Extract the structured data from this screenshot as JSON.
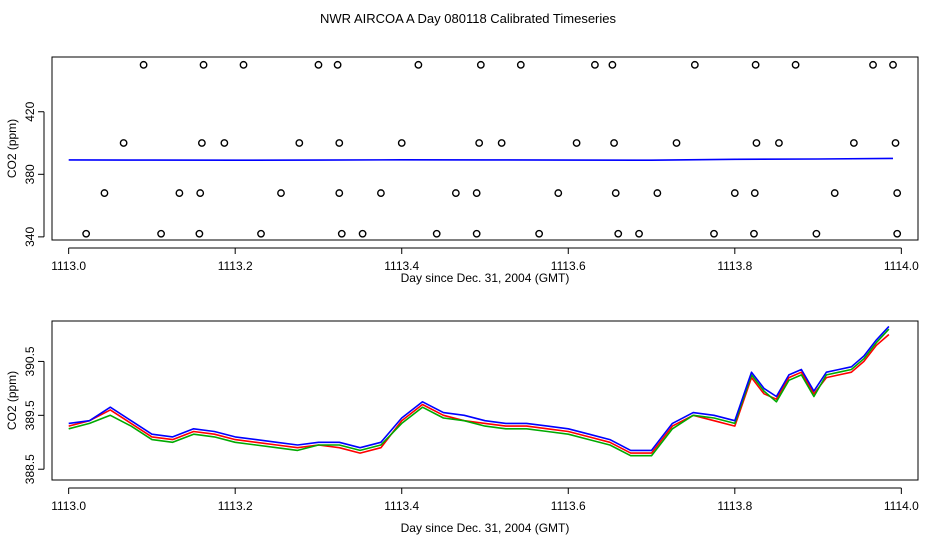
{
  "page": {
    "title": "NWR AIRCOA A  Day 080118  Calibrated Timeseries"
  },
  "chart_data": [
    {
      "type": "scatter",
      "xlabel": "Day since Dec. 31, 2004 (GMT)",
      "ylabel": "CO2 (ppm)",
      "xlim": [
        1112.98,
        1114.02
      ],
      "ylim": [
        338,
        455
      ],
      "xticks": [
        1113.0,
        1113.2,
        1113.4,
        1113.6,
        1113.8,
        1114.0
      ],
      "xtick_labels": [
        "1113.0",
        "1113.2",
        "1113.4",
        "1113.6",
        "1113.8",
        "1114.0"
      ],
      "yticks": [
        340,
        380,
        420
      ],
      "ytick_labels": [
        "340",
        "380",
        "420"
      ],
      "series": [
        {
          "color": "#0000ff",
          "mode": "line",
          "x": [
            1113.0,
            1113.1,
            1113.2,
            1113.3,
            1113.4,
            1113.5,
            1113.6,
            1113.7,
            1113.8,
            1113.9,
            1113.99
          ],
          "y": [
            389.2,
            389.1,
            389.0,
            389.1,
            389.3,
            389.2,
            389.1,
            389.0,
            389.6,
            389.8,
            390.2
          ]
        },
        {
          "color": "#000000",
          "mode": "points",
          "x": [
            1113.09,
            1113.162,
            1113.21,
            1113.3,
            1113.323,
            1113.42,
            1113.495,
            1113.543,
            1113.632,
            1113.653,
            1113.752,
            1113.825,
            1113.873,
            1113.966,
            1113.99,
            1113.066,
            1113.16,
            1113.187,
            1113.277,
            1113.325,
            1113.4,
            1113.493,
            1113.52,
            1113.61,
            1113.655,
            1113.73,
            1113.826,
            1113.853,
            1113.943,
            1113.993,
            1113.043,
            1113.133,
            1113.158,
            1113.255,
            1113.325,
            1113.375,
            1113.465,
            1113.49,
            1113.588,
            1113.657,
            1113.707,
            1113.8,
            1113.824,
            1113.92,
            1113.995,
            1113.021,
            1113.111,
            1113.157,
            1113.231,
            1113.328,
            1113.353,
            1113.442,
            1113.49,
            1113.565,
            1113.66,
            1113.685,
            1113.775,
            1113.823,
            1113.898,
            1113.995
          ],
          "y": [
            450,
            450,
            450,
            450,
            450,
            450,
            450,
            450,
            450,
            450,
            450,
            450,
            450,
            450,
            450,
            400,
            400,
            400,
            400,
            400,
            400,
            400,
            400,
            400,
            400,
            400,
            400,
            400,
            400,
            400,
            368,
            368,
            368,
            368,
            368,
            368,
            368,
            368,
            368,
            368,
            368,
            368,
            368,
            368,
            368,
            342,
            342,
            342,
            342,
            342,
            342,
            342,
            342,
            342,
            342,
            342,
            342,
            342,
            342,
            342
          ]
        }
      ]
    },
    {
      "type": "line",
      "xlabel": "Day since Dec. 31, 2004 (GMT)",
      "ylabel": "CO2 (ppm)",
      "xlim": [
        1112.98,
        1114.02
      ],
      "ylim": [
        388.3,
        391.25
      ],
      "xticks": [
        1113.0,
        1113.2,
        1113.4,
        1113.6,
        1113.8,
        1114.0
      ],
      "xtick_labels": [
        "1113.0",
        "1113.2",
        "1113.4",
        "1113.6",
        "1113.8",
        "1114.0"
      ],
      "yticks": [
        388.5,
        389.5,
        390.5
      ],
      "ytick_labels": [
        "388.5",
        "389.5",
        "390.5"
      ],
      "series": [
        {
          "color": "#ff0000",
          "x": [
            1113.0,
            1113.025,
            1113.05,
            1113.075,
            1113.1,
            1113.125,
            1113.15,
            1113.175,
            1113.2,
            1113.225,
            1113.25,
            1113.275,
            1113.3,
            1113.325,
            1113.35,
            1113.375,
            1113.4,
            1113.425,
            1113.45,
            1113.475,
            1113.5,
            1113.525,
            1113.55,
            1113.575,
            1113.6,
            1113.625,
            1113.65,
            1113.675,
            1113.7,
            1113.725,
            1113.75,
            1113.775,
            1113.8,
            1113.82,
            1113.835,
            1113.85,
            1113.865,
            1113.88,
            1113.895,
            1113.91,
            1113.925,
            1113.94,
            1113.955,
            1113.97,
            1113.985
          ],
          "y": [
            389.3,
            389.4,
            389.6,
            389.35,
            389.1,
            389.05,
            389.2,
            389.15,
            389.05,
            389.0,
            388.95,
            388.9,
            388.95,
            388.9,
            388.8,
            388.9,
            389.4,
            389.7,
            389.5,
            389.4,
            389.35,
            389.3,
            389.3,
            389.25,
            389.2,
            389.1,
            389.0,
            388.8,
            388.8,
            389.3,
            389.5,
            389.4,
            389.3,
            390.2,
            389.9,
            389.8,
            390.2,
            390.3,
            389.9,
            390.2,
            390.25,
            390.3,
            390.5,
            390.8,
            391.0
          ]
        },
        {
          "color": "#00aa00",
          "x": [
            1113.0,
            1113.025,
            1113.05,
            1113.075,
            1113.1,
            1113.125,
            1113.15,
            1113.175,
            1113.2,
            1113.225,
            1113.25,
            1113.275,
            1113.3,
            1113.325,
            1113.35,
            1113.375,
            1113.4,
            1113.425,
            1113.45,
            1113.475,
            1113.5,
            1113.525,
            1113.55,
            1113.575,
            1113.6,
            1113.625,
            1113.65,
            1113.675,
            1113.7,
            1113.725,
            1113.75,
            1113.775,
            1113.8,
            1113.82,
            1113.835,
            1113.85,
            1113.865,
            1113.88,
            1113.895,
            1113.91,
            1113.925,
            1113.94,
            1113.955,
            1113.97,
            1113.985
          ],
          "y": [
            389.25,
            389.35,
            389.5,
            389.3,
            389.05,
            389.0,
            389.15,
            389.1,
            389.0,
            388.95,
            388.9,
            388.85,
            388.95,
            388.95,
            388.85,
            388.95,
            389.35,
            389.65,
            389.45,
            389.4,
            389.3,
            389.25,
            389.25,
            389.2,
            389.15,
            389.05,
            388.95,
            388.75,
            388.75,
            389.25,
            389.5,
            389.45,
            389.35,
            390.25,
            389.95,
            389.75,
            390.15,
            390.25,
            389.85,
            390.25,
            390.3,
            390.35,
            390.55,
            390.85,
            391.1
          ]
        },
        {
          "color": "#0000ff",
          "x": [
            1113.0,
            1113.025,
            1113.05,
            1113.075,
            1113.1,
            1113.125,
            1113.15,
            1113.175,
            1113.2,
            1113.225,
            1113.25,
            1113.275,
            1113.3,
            1113.325,
            1113.35,
            1113.375,
            1113.4,
            1113.425,
            1113.45,
            1113.475,
            1113.5,
            1113.525,
            1113.55,
            1113.575,
            1113.6,
            1113.625,
            1113.65,
            1113.675,
            1113.7,
            1113.725,
            1113.75,
            1113.775,
            1113.8,
            1113.82,
            1113.835,
            1113.85,
            1113.865,
            1113.88,
            1113.895,
            1113.91,
            1113.925,
            1113.94,
            1113.955,
            1113.97,
            1113.985
          ],
          "y": [
            389.35,
            389.4,
            389.65,
            389.4,
            389.15,
            389.1,
            389.25,
            389.2,
            389.1,
            389.05,
            389.0,
            388.95,
            389.0,
            389.0,
            388.9,
            389.0,
            389.45,
            389.75,
            389.55,
            389.5,
            389.4,
            389.35,
            389.35,
            389.3,
            389.25,
            389.15,
            389.05,
            388.85,
            388.85,
            389.35,
            389.55,
            389.5,
            389.4,
            390.3,
            390.0,
            389.85,
            390.25,
            390.35,
            389.95,
            390.3,
            390.35,
            390.4,
            390.6,
            390.9,
            391.15
          ]
        }
      ]
    }
  ]
}
